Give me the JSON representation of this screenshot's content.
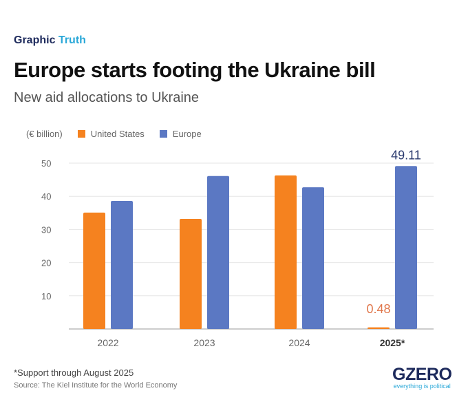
{
  "header": {
    "kicker_a": "Graphic",
    "kicker_b": "Truth",
    "title": "Europe starts footing the Ukraine bill",
    "subtitle": "New aid allocations to Ukraine"
  },
  "chart_data": {
    "type": "bar",
    "unit_label": "(€ billion)",
    "categories": [
      "2022",
      "2023",
      "2024",
      "2025*"
    ],
    "series": [
      {
        "name": "United States",
        "color": "#f5821f",
        "values": [
          35.1,
          33.2,
          46.3,
          0.48
        ]
      },
      {
        "name": "Europe",
        "color": "#5b78c3",
        "values": [
          38.6,
          46.1,
          42.7,
          49.11
        ]
      }
    ],
    "data_labels": [
      {
        "series": "United States",
        "category": "2025*",
        "text": "0.48"
      },
      {
        "series": "Europe",
        "category": "2025*",
        "text": "49.11"
      }
    ],
    "yticks": [
      10,
      20,
      30,
      40,
      50
    ],
    "ylim": [
      0,
      50
    ],
    "grid": true,
    "legend": "top-left"
  },
  "footer": {
    "note": "*Support through August 2025",
    "source": "Source: The Kiel Institute for the World Economy",
    "logo": "GZERO",
    "tagline": "everything is political"
  }
}
